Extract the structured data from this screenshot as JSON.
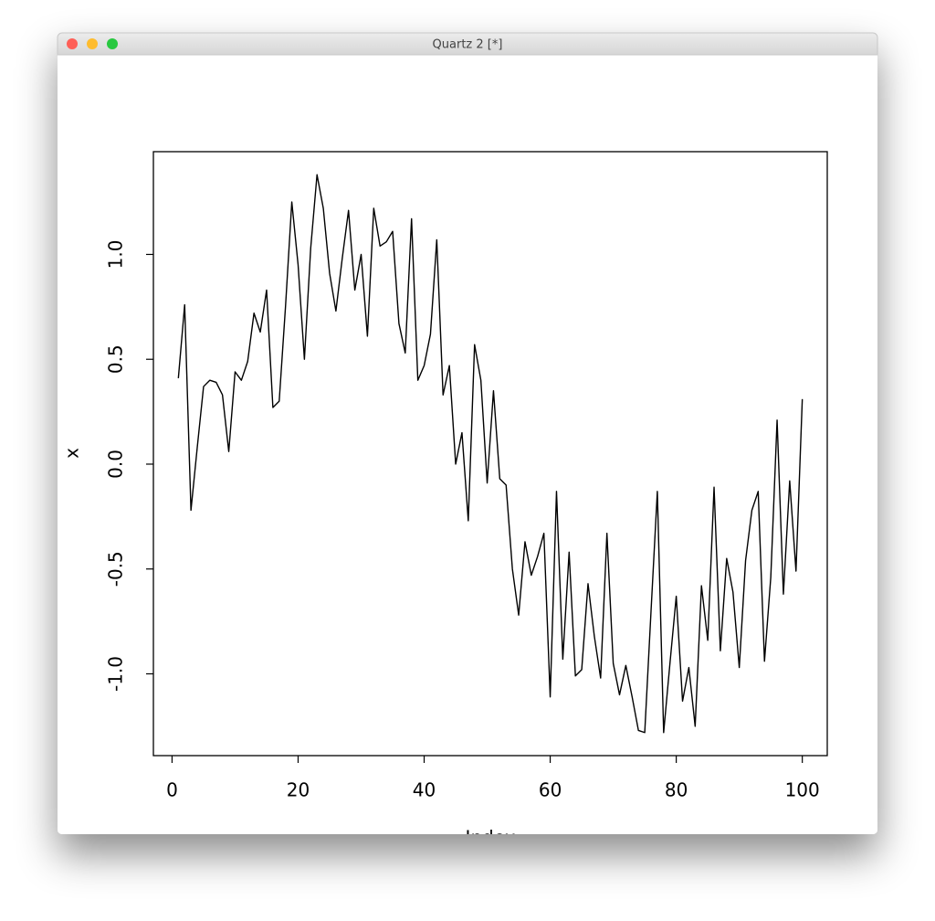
{
  "window": {
    "title": "Quartz 2 [*]"
  },
  "chart_data": {
    "type": "line",
    "x_label": "Index",
    "y_label": "x",
    "color": "#000000",
    "x": [
      1,
      2,
      3,
      4,
      5,
      6,
      7,
      8,
      9,
      10,
      11,
      12,
      13,
      14,
      15,
      16,
      17,
      18,
      19,
      20,
      21,
      22,
      23,
      24,
      25,
      26,
      27,
      28,
      29,
      30,
      31,
      32,
      33,
      34,
      35,
      36,
      37,
      38,
      39,
      40,
      41,
      42,
      43,
      44,
      45,
      46,
      47,
      48,
      49,
      50,
      51,
      52,
      53,
      54,
      55,
      56,
      57,
      58,
      59,
      60,
      61,
      62,
      63,
      64,
      65,
      66,
      67,
      68,
      69,
      70,
      71,
      72,
      73,
      74,
      75,
      76,
      77,
      78,
      79,
      80,
      81,
      82,
      83,
      84,
      85,
      86,
      87,
      88,
      89,
      90,
      91,
      92,
      93,
      94,
      95,
      96,
      97,
      98,
      99,
      100
    ],
    "values": [
      0.41,
      0.76,
      -0.22,
      0.08,
      0.37,
      0.4,
      0.39,
      0.33,
      0.06,
      0.44,
      0.4,
      0.49,
      0.72,
      0.63,
      0.83,
      0.27,
      0.3,
      0.75,
      1.25,
      0.95,
      0.5,
      1.03,
      1.38,
      1.22,
      0.91,
      0.73,
      0.98,
      1.21,
      0.83,
      1.0,
      0.61,
      1.22,
      1.04,
      1.06,
      1.11,
      0.67,
      0.53,
      1.17,
      0.4,
      0.47,
      0.62,
      1.07,
      0.33,
      0.47,
      0.0,
      0.15,
      -0.27,
      0.57,
      0.4,
      -0.09,
      0.35,
      -0.07,
      -0.1,
      -0.5,
      -0.72,
      -0.37,
      -0.53,
      -0.44,
      -0.33,
      -1.11,
      -0.13,
      -0.93,
      -0.42,
      -1.01,
      -0.98,
      -0.57,
      -0.82,
      -1.02,
      -0.33,
      -0.95,
      -1.1,
      -0.96,
      -1.11,
      -1.27,
      -1.28,
      -0.7,
      -0.13,
      -1.28,
      -0.95,
      -0.63,
      -1.13,
      -0.97,
      -1.25,
      -0.58,
      -0.84,
      -0.11,
      -0.89,
      -0.45,
      -0.61,
      -0.97,
      -0.46,
      -0.22,
      -0.13,
      -0.94,
      -0.54,
      0.21,
      -0.62,
      -0.08,
      -0.51,
      0.31
    ],
    "xlim": [
      -2.96,
      103.96
    ],
    "ylim": [
      -1.39,
      1.49
    ],
    "xticks": [
      0,
      20,
      40,
      60,
      80,
      100
    ],
    "yticks": [
      {
        "value": -1,
        "label": "-1.0"
      },
      -0.5,
      {
        "value": 0,
        "label": "0.0"
      },
      0.5,
      {
        "value": 1,
        "label": "1.0"
      }
    ]
  }
}
